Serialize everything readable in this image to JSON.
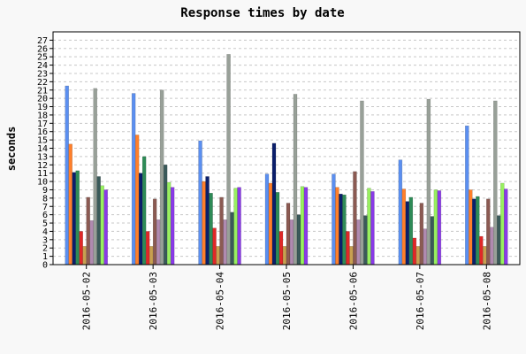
{
  "chart_data": {
    "type": "bar",
    "title": "Response times by date",
    "xlabel": "",
    "ylabel": "seconds",
    "ylim": [
      0,
      28
    ],
    "yticks": [
      0,
      1,
      2,
      3,
      4,
      5,
      6,
      7,
      8,
      9,
      10,
      11,
      12,
      13,
      14,
      15,
      16,
      17,
      18,
      19,
      20,
      21,
      22,
      23,
      24,
      25,
      26,
      27
    ],
    "grid": true,
    "legend": "none",
    "categories": [
      "2016-05-02",
      "2016-05-03",
      "2016-05-04",
      "2016-05-05",
      "2016-05-06",
      "2016-05-07",
      "2016-05-08"
    ],
    "series": [
      {
        "color": "#5b8ff0",
        "values": [
          21.5,
          20.6,
          14.9,
          10.9,
          10.9,
          12.6,
          16.7
        ]
      },
      {
        "color": "#ff7f2a",
        "values": [
          14.5,
          15.6,
          10.0,
          9.8,
          9.3,
          9.1,
          9.0
        ]
      },
      {
        "color": "#0b1f6b",
        "values": [
          11.1,
          11.0,
          10.6,
          14.6,
          8.5,
          7.6,
          7.9
        ]
      },
      {
        "color": "#2e8b57",
        "values": [
          11.3,
          13.0,
          8.6,
          8.7,
          8.4,
          8.1,
          8.2
        ]
      },
      {
        "color": "#e02828",
        "values": [
          4.0,
          4.0,
          4.4,
          4.0,
          4.0,
          3.2,
          3.4
        ]
      },
      {
        "color": "#c8a050",
        "values": [
          2.2,
          2.2,
          2.2,
          2.2,
          2.2,
          2.2,
          2.2
        ]
      },
      {
        "color": "#8b5a52",
        "values": [
          8.1,
          7.9,
          8.1,
          7.4,
          11.2,
          7.4,
          7.9
        ]
      },
      {
        "color": "#b08ab0",
        "values": [
          5.3,
          5.4,
          5.4,
          5.4,
          5.4,
          4.3,
          4.5
        ]
      },
      {
        "color": "#98a098",
        "values": [
          21.2,
          21.0,
          25.3,
          20.5,
          19.7,
          19.9,
          19.7
        ]
      },
      {
        "color": "#3a5a5a",
        "values": [
          10.6,
          12.0,
          6.3,
          6.0,
          5.9,
          5.8,
          5.9
        ]
      },
      {
        "color": "#98f060",
        "values": [
          9.5,
          9.9,
          9.2,
          9.4,
          9.2,
          9.0,
          9.8
        ]
      },
      {
        "color": "#8a3ae8",
        "values": [
          9.0,
          9.3,
          9.3,
          9.3,
          8.8,
          8.9,
          9.1
        ]
      }
    ]
  }
}
